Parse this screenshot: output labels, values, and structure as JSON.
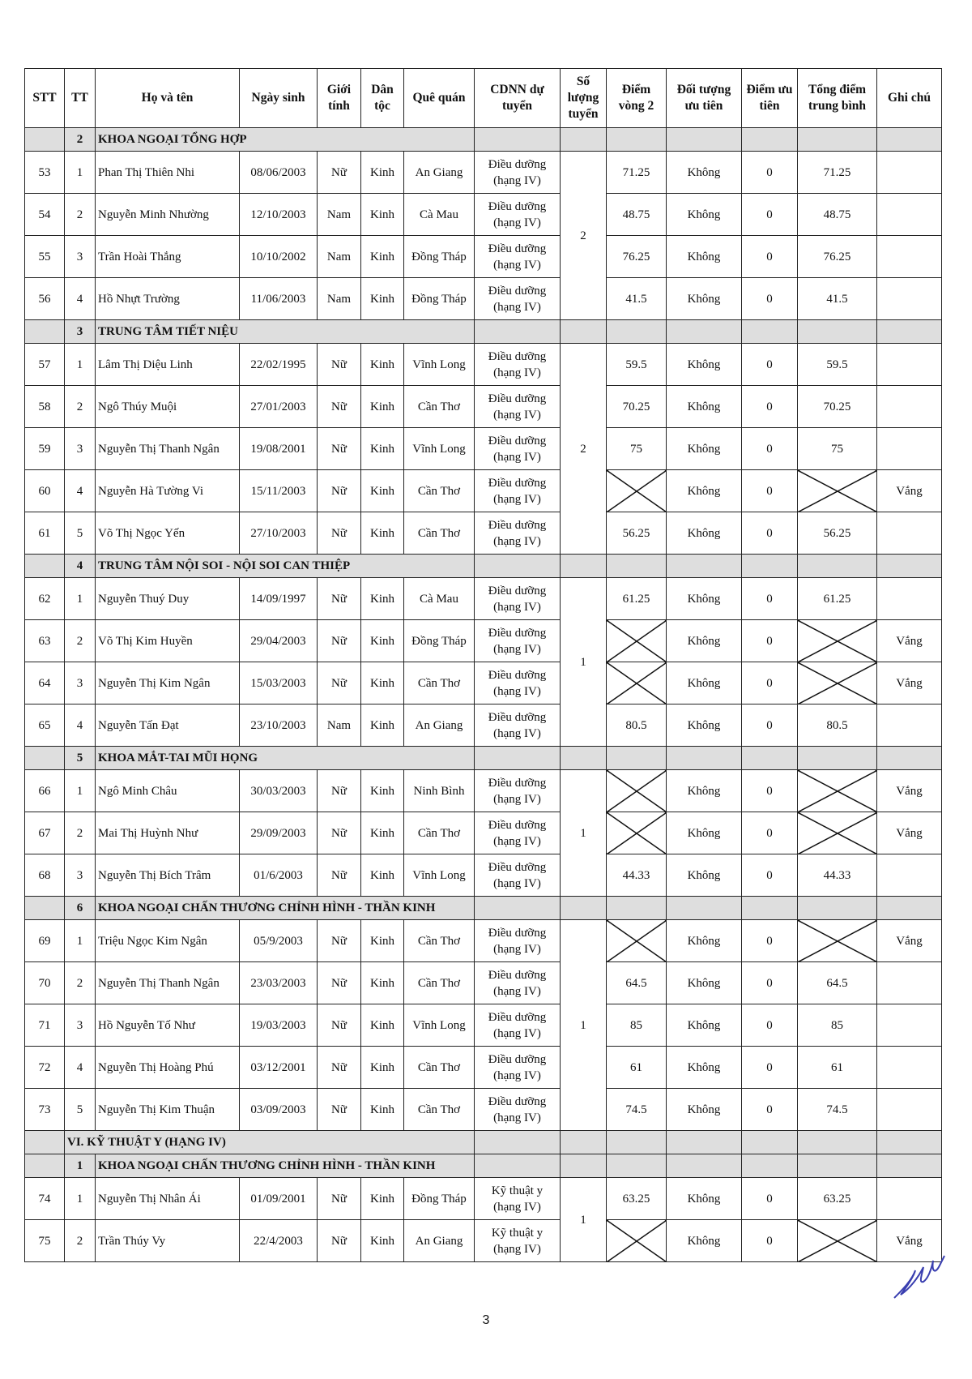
{
  "header": [
    "STT",
    "TT",
    "Họ và tên",
    "Ngày sinh",
    "Giới tính",
    "Dân tộc",
    "Quê quán",
    "CDNN dự tuyển",
    "Số lượng tuyển",
    "Điểm vòng 2",
    "Đối tượng ưu tiên",
    "Điểm ưu tiên",
    "Tổng điểm trung bình",
    "Ghi chú"
  ],
  "sections": [
    {
      "group": null,
      "tt": "2",
      "title": "KHOA NGOẠI TỔNG HỢP",
      "quota": "2",
      "rows": [
        {
          "stt": "53",
          "tt": "1",
          "name": "Phan Thị Thiên Nhi",
          "dob": "08/06/2003",
          "gender": "Nữ",
          "ethnicity": "Kinh",
          "hometown": "An Giang",
          "cdnn": "Điều dưỡng (hạng IV)",
          "score": "71.25",
          "priority_group": "Không",
          "priority_score": "0",
          "total": "71.25",
          "note": ""
        },
        {
          "stt": "54",
          "tt": "2",
          "name": "Nguyễn Minh Nhường",
          "dob": "12/10/2003",
          "gender": "Nam",
          "ethnicity": "Kinh",
          "hometown": "Cà Mau",
          "cdnn": "Điều dưỡng (hạng IV)",
          "score": "48.75",
          "priority_group": "Không",
          "priority_score": "0",
          "total": "48.75",
          "note": ""
        },
        {
          "stt": "55",
          "tt": "3",
          "name": "Trần Hoài Thắng",
          "dob": "10/10/2002",
          "gender": "Nam",
          "ethnicity": "Kinh",
          "hometown": "Đồng Tháp",
          "cdnn": "Điều dưỡng (hạng IV)",
          "score": "76.25",
          "priority_group": "Không",
          "priority_score": "0",
          "total": "76.25",
          "note": ""
        },
        {
          "stt": "56",
          "tt": "4",
          "name": "Hồ Nhựt Trường",
          "dob": "11/06/2003",
          "gender": "Nam",
          "ethnicity": "Kinh",
          "hometown": "Đồng Tháp",
          "cdnn": "Điều dưỡng (hạng IV)",
          "score": "41.5",
          "priority_group": "Không",
          "priority_score": "0",
          "total": "41.5",
          "note": ""
        }
      ]
    },
    {
      "group": null,
      "tt": "3",
      "title": "TRUNG TÂM TIẾT NIỆU",
      "quota": "2",
      "rows": [
        {
          "stt": "57",
          "tt": "1",
          "name": "Lâm Thị Diệu Linh",
          "dob": "22/02/1995",
          "gender": "Nữ",
          "ethnicity": "Kinh",
          "hometown": "Vĩnh Long",
          "cdnn": "Điều dưỡng (hạng IV)",
          "score": "59.5",
          "priority_group": "Không",
          "priority_score": "0",
          "total": "59.5",
          "note": ""
        },
        {
          "stt": "58",
          "tt": "2",
          "name": "Ngô Thúy Muội",
          "dob": "27/01/2003",
          "gender": "Nữ",
          "ethnicity": "Kinh",
          "hometown": "Cần Thơ",
          "cdnn": "Điều dưỡng (hạng IV)",
          "score": "70.25",
          "priority_group": "Không",
          "priority_score": "0",
          "total": "70.25",
          "note": ""
        },
        {
          "stt": "59",
          "tt": "3",
          "name": "Nguyễn Thị Thanh Ngân",
          "dob": "19/08/2001",
          "gender": "Nữ",
          "ethnicity": "Kinh",
          "hometown": "Vĩnh Long",
          "cdnn": "Điều dưỡng (hạng IV)",
          "score": "75",
          "priority_group": "Không",
          "priority_score": "0",
          "total": "75",
          "note": ""
        },
        {
          "stt": "60",
          "tt": "4",
          "name": "Nguyễn Hà Tường Vi",
          "dob": "15/11/2003",
          "gender": "Nữ",
          "ethnicity": "Kinh",
          "hometown": "Cần Thơ",
          "cdnn": "Điều dưỡng (hạng IV)",
          "score": null,
          "priority_group": "Không",
          "priority_score": "0",
          "total": null,
          "note": "Vắng"
        },
        {
          "stt": "61",
          "tt": "5",
          "name": "Võ Thị Ngọc Yến",
          "dob": "27/10/2003",
          "gender": "Nữ",
          "ethnicity": "Kinh",
          "hometown": "Cần Thơ",
          "cdnn": "Điều dưỡng (hạng IV)",
          "score": "56.25",
          "priority_group": "Không",
          "priority_score": "0",
          "total": "56.25",
          "note": ""
        }
      ]
    },
    {
      "group": null,
      "tt": "4",
      "title": "TRUNG TÂM NỘI SOI - NỘI SOI CAN THIỆP",
      "quota": "1",
      "rows": [
        {
          "stt": "62",
          "tt": "1",
          "name": "Nguyễn Thuý Duy",
          "dob": "14/09/1997",
          "gender": "Nữ",
          "ethnicity": "Kinh",
          "hometown": "Cà Mau",
          "cdnn": "Điều dưỡng (hạng IV)",
          "score": "61.25",
          "priority_group": "Không",
          "priority_score": "0",
          "total": "61.25",
          "note": ""
        },
        {
          "stt": "63",
          "tt": "2",
          "name": "Võ Thị Kim Huyền",
          "dob": "29/04/2003",
          "gender": "Nữ",
          "ethnicity": "Kinh",
          "hometown": "Đồng Tháp",
          "cdnn": "Điều dưỡng (hạng IV)",
          "score": null,
          "priority_group": "Không",
          "priority_score": "0",
          "total": null,
          "note": "Vắng"
        },
        {
          "stt": "64",
          "tt": "3",
          "name": "Nguyễn Thị Kim Ngân",
          "dob": "15/03/2003",
          "gender": "Nữ",
          "ethnicity": "Kinh",
          "hometown": "Cần Thơ",
          "cdnn": "Điều dưỡng (hạng IV)",
          "score": null,
          "priority_group": "Không",
          "priority_score": "0",
          "total": null,
          "note": "Vắng"
        },
        {
          "stt": "65",
          "tt": "4",
          "name": "Nguyễn Tấn Đạt",
          "dob": "23/10/2003",
          "gender": "Nam",
          "ethnicity": "Kinh",
          "hometown": "An Giang",
          "cdnn": "Điều dưỡng (hạng IV)",
          "score": "80.5",
          "priority_group": "Không",
          "priority_score": "0",
          "total": "80.5",
          "note": ""
        }
      ]
    },
    {
      "group": null,
      "tt": "5",
      "title": "KHOA MẮT-TAI MŨI HỌNG",
      "quota": "1",
      "rows": [
        {
          "stt": "66",
          "tt": "1",
          "name": "Ngô Minh Châu",
          "dob": "30/03/2003",
          "gender": "Nữ",
          "ethnicity": "Kinh",
          "hometown": "Ninh Bình",
          "cdnn": "Điều dưỡng (hạng IV)",
          "score": null,
          "priority_group": "Không",
          "priority_score": "0",
          "total": null,
          "note": "Vắng"
        },
        {
          "stt": "67",
          "tt": "2",
          "name": "Mai Thị Huỳnh Như",
          "dob": "29/09/2003",
          "gender": "Nữ",
          "ethnicity": "Kinh",
          "hometown": "Cần Thơ",
          "cdnn": "Điều dưỡng (hạng IV)",
          "score": null,
          "priority_group": "Không",
          "priority_score": "0",
          "total": null,
          "note": "Vắng"
        },
        {
          "stt": "68",
          "tt": "3",
          "name": "Nguyễn Thị Bích Trâm",
          "dob": "01/6/2003",
          "gender": "Nữ",
          "ethnicity": "Kinh",
          "hometown": "Vĩnh Long",
          "cdnn": "Điều dưỡng (hạng IV)",
          "score": "44.33",
          "priority_group": "Không",
          "priority_score": "0",
          "total": "44.33",
          "note": ""
        }
      ]
    },
    {
      "group": null,
      "tt": "6",
      "title": "KHOA NGOẠI CHẤN THƯƠNG CHỈNH HÌNH - THẦN KINH",
      "quota": "1",
      "rows": [
        {
          "stt": "69",
          "tt": "1",
          "name": "Triệu Ngọc Kim Ngân",
          "dob": "05/9/2003",
          "gender": "Nữ",
          "ethnicity": "Kinh",
          "hometown": "Cần Thơ",
          "cdnn": "Điều dưỡng (hạng IV)",
          "score": null,
          "priority_group": "Không",
          "priority_score": "0",
          "total": null,
          "note": "Vắng"
        },
        {
          "stt": "70",
          "tt": "2",
          "name": "Nguyễn Thị Thanh Ngân",
          "dob": "23/03/2003",
          "gender": "Nữ",
          "ethnicity": "Kinh",
          "hometown": "Cần Thơ",
          "cdnn": "Điều dưỡng (hạng IV)",
          "score": "64.5",
          "priority_group": "Không",
          "priority_score": "0",
          "total": "64.5",
          "note": ""
        },
        {
          "stt": "71",
          "tt": "3",
          "name": "Hồ Nguyễn Tố Như",
          "dob": "19/03/2003",
          "gender": "Nữ",
          "ethnicity": "Kinh",
          "hometown": "Vĩnh Long",
          "cdnn": "Điều dưỡng (hạng IV)",
          "score": "85",
          "priority_group": "Không",
          "priority_score": "0",
          "total": "85",
          "note": ""
        },
        {
          "stt": "72",
          "tt": "4",
          "name": "Nguyễn Thị Hoàng Phú",
          "dob": "03/12/2001",
          "gender": "Nữ",
          "ethnicity": "Kinh",
          "hometown": "Cần Thơ",
          "cdnn": "Điều dưỡng (hạng IV)",
          "score": "61",
          "priority_group": "Không",
          "priority_score": "0",
          "total": "61",
          "note": ""
        },
        {
          "stt": "73",
          "tt": "5",
          "name": "Nguyễn Thị Kim Thuận",
          "dob": "03/09/2003",
          "gender": "Nữ",
          "ethnicity": "Kinh",
          "hometown": "Cần Thơ",
          "cdnn": "Điều dưỡng (hạng IV)",
          "score": "74.5",
          "priority_group": "Không",
          "priority_score": "0",
          "total": "74.5",
          "note": ""
        }
      ]
    },
    {
      "group": "VI. KỸ THUẬT Y (HẠNG IV)",
      "tt": "1",
      "title": "KHOA NGOẠI CHẤN THƯƠNG CHỈNH HÌNH - THẦN KINH",
      "quota": "1",
      "rows": [
        {
          "stt": "74",
          "tt": "1",
          "name": "Nguyễn Thị Nhân Ái",
          "dob": "01/09/2001",
          "gender": "Nữ",
          "ethnicity": "Kinh",
          "hometown": "Đồng Tháp",
          "cdnn": "Kỹ thuật y (hạng IV)",
          "score": "63.25",
          "priority_group": "Không",
          "priority_score": "0",
          "total": "63.25",
          "note": ""
        },
        {
          "stt": "75",
          "tt": "2",
          "name": "Trần Thúy Vy",
          "dob": "22/4/2003",
          "gender": "Nữ",
          "ethnicity": "Kinh",
          "hometown": "An Giang",
          "cdnn": "Kỹ thuật y (hạng IV)",
          "score": null,
          "priority_group": "Không",
          "priority_score": "0",
          "total": null,
          "note": "Vắng"
        }
      ]
    }
  ],
  "page_number": "3",
  "signature_color": "#3a3fb0"
}
